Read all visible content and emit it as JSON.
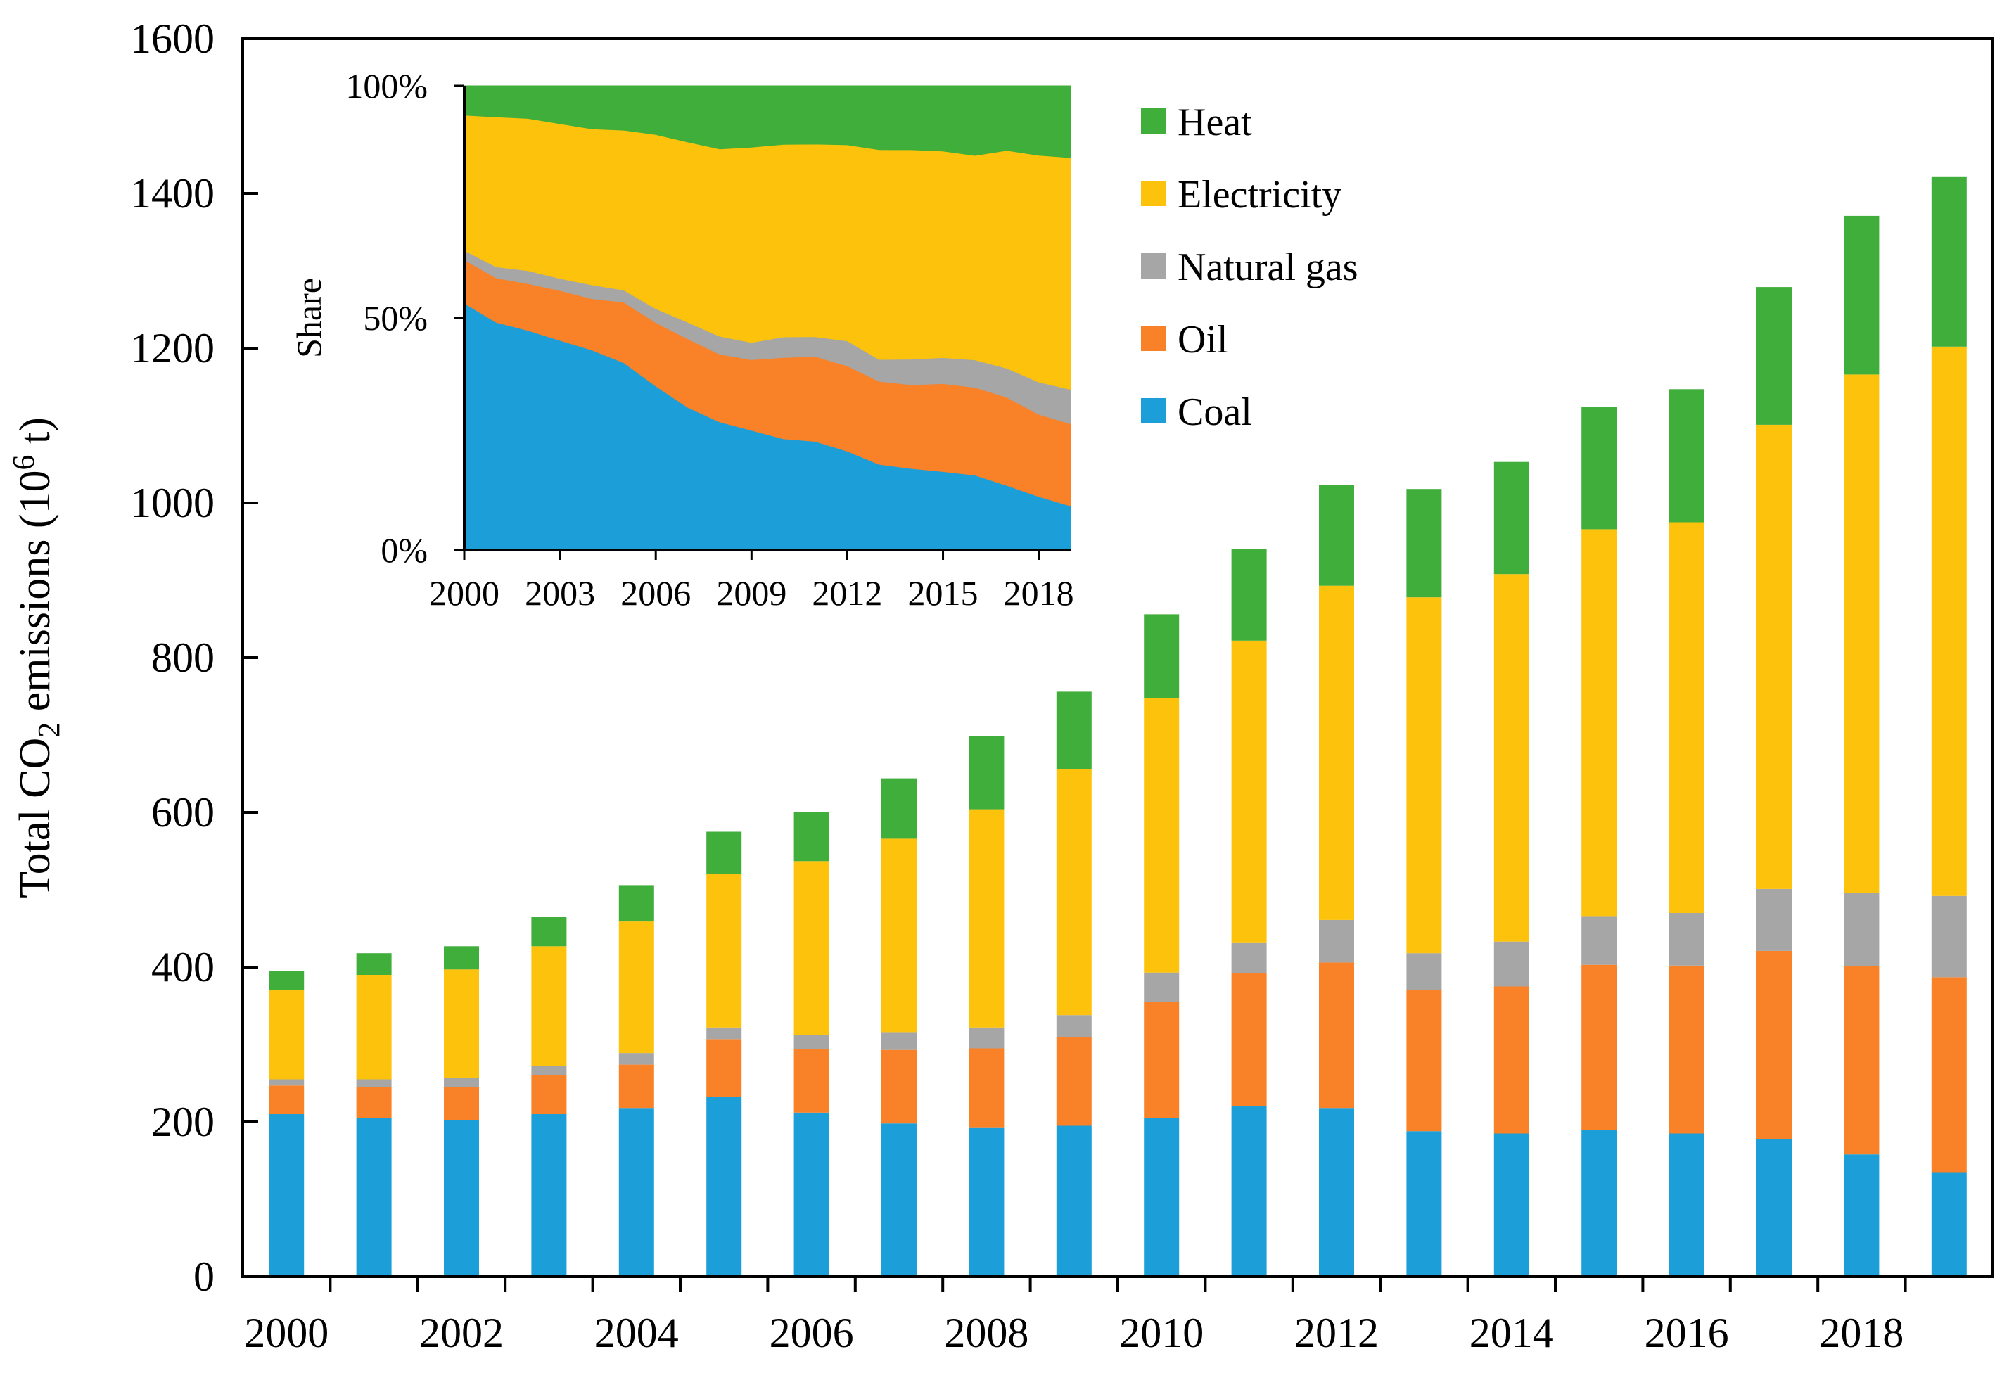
{
  "chart_data": [
    {
      "type": "bar",
      "stacked": true,
      "ylabel": "Total CO2 emissions (10^6 t)",
      "ylabel_parts": [
        "Total CO",
        "2",
        " emissions (10",
        "6",
        " t)"
      ],
      "ylim": [
        0,
        1600
      ],
      "yticks": [
        "0",
        "200",
        "400",
        "600",
        "800",
        "1000",
        "1200",
        "1400",
        "1600"
      ],
      "xticks": [
        "2000",
        "2002",
        "2004",
        "2006",
        "2008",
        "2010",
        "2012",
        "2014",
        "2016",
        "2018"
      ],
      "categories": [
        "2000",
        "2001",
        "2002",
        "2003",
        "2004",
        "2005",
        "2006",
        "2007",
        "2008",
        "2009",
        "2010",
        "2011",
        "2012",
        "2013",
        "2014",
        "2015",
        "2016",
        "2017",
        "2018",
        "2019"
      ],
      "series": [
        {
          "name": "Coal",
          "color": "#1c9fd8",
          "values": [
            210,
            205,
            202,
            210,
            218,
            232,
            212,
            198,
            193,
            195,
            205,
            220,
            218,
            188,
            185,
            190,
            185,
            178,
            158,
            135
          ]
        },
        {
          "name": "Oil",
          "color": "#f98127",
          "values": [
            37,
            40,
            43,
            50,
            56,
            75,
            82,
            95,
            102,
            115,
            150,
            172,
            188,
            182,
            190,
            213,
            217,
            243,
            243,
            252
          ]
        },
        {
          "name": "Natural gas",
          "color": "#a6a6a6",
          "values": [
            8,
            10,
            12,
            12,
            15,
            15,
            18,
            23,
            27,
            28,
            38,
            40,
            55,
            48,
            58,
            63,
            68,
            80,
            95,
            105
          ]
        },
        {
          "name": "Electricity",
          "color": "#fdc20b",
          "values": [
            115,
            135,
            140,
            155,
            170,
            198,
            225,
            250,
            282,
            318,
            355,
            390,
            432,
            460,
            475,
            500,
            505,
            600,
            670,
            710
          ]
        },
        {
          "name": "Heat",
          "color": "#3fae3a",
          "values": [
            25,
            28,
            30,
            38,
            47,
            55,
            63,
            78,
            95,
            100,
            108,
            118,
            130,
            140,
            145,
            158,
            172,
            178,
            205,
            220
          ]
        }
      ],
      "legend": {
        "placement": "top-right",
        "order": [
          "Heat",
          "Electricity",
          "Natural gas",
          "Oil",
          "Coal"
        ]
      }
    },
    {
      "type": "area",
      "stacked": true,
      "normalized": true,
      "ylabel": "Share",
      "yticks": [
        "0%",
        "50%",
        "100%"
      ],
      "xticks": [
        "2000",
        "2003",
        "2006",
        "2009",
        "2012",
        "2015",
        "2018"
      ],
      "x": [
        2000,
        2001,
        2002,
        2003,
        2004,
        2005,
        2006,
        2007,
        2008,
        2009,
        2010,
        2011,
        2012,
        2013,
        2014,
        2015,
        2016,
        2017,
        2018,
        2019
      ],
      "series_order": [
        "Coal",
        "Oil",
        "Natural gas",
        "Electricity",
        "Heat"
      ],
      "note": "Shares computed from the stacked bar series values"
    }
  ]
}
